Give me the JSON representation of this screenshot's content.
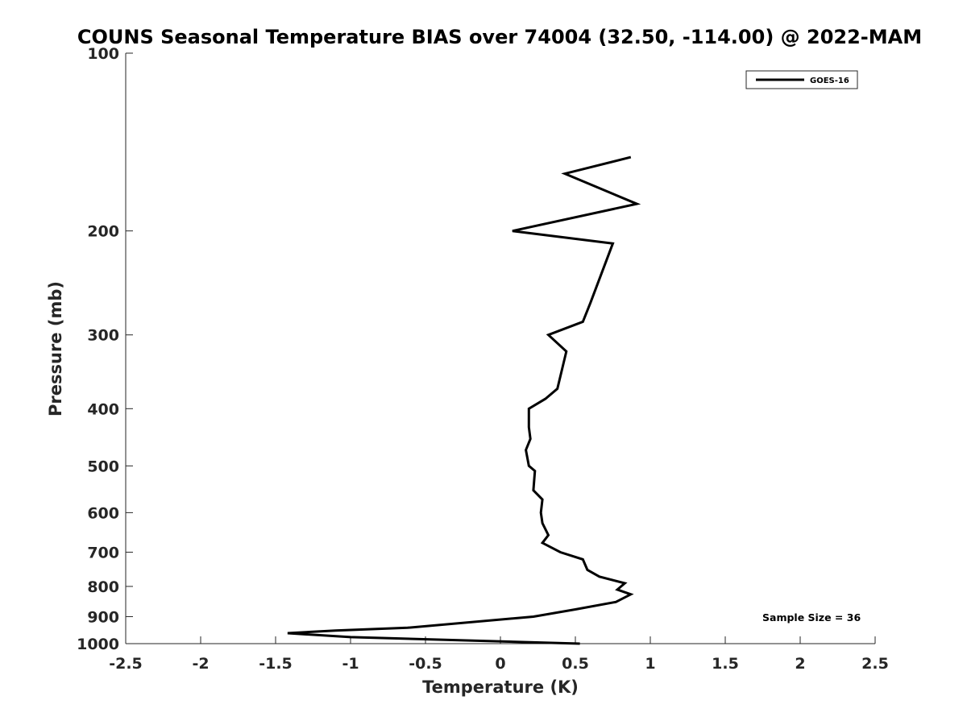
{
  "chart_data": {
    "type": "line",
    "title": "COUNS Seasonal Temperature BIAS over 74004 (32.50, -114.00) @ 2022-MAM",
    "xlabel": "Temperature (K)",
    "ylabel": "Pressure (mb)",
    "xlim": [
      -2.5,
      2.5
    ],
    "ylim": [
      100,
      1000
    ],
    "y_scale": "log",
    "y_reversed": true,
    "x_ticks": [
      "-2.5",
      "-2",
      "-1.5",
      "-1",
      "-0.5",
      "0",
      "0.5",
      "1",
      "1.5",
      "2",
      "2.5"
    ],
    "y_ticks": [
      "100",
      "200",
      "300",
      "400",
      "500",
      "600",
      "700",
      "800",
      "900",
      "1000"
    ],
    "grid": false,
    "legend_position": "top-right",
    "annotation": "Sample Size = 36",
    "series": [
      {
        "name": "GOES-16",
        "color": "#000000",
        "points": [
          [
            0.87,
            150
          ],
          [
            0.43,
            160
          ],
          [
            0.91,
            180
          ],
          [
            0.08,
            200
          ],
          [
            0.75,
            210
          ],
          [
            0.6,
            265
          ],
          [
            0.55,
            285
          ],
          [
            0.32,
            300
          ],
          [
            0.44,
            320
          ],
          [
            0.38,
            370
          ],
          [
            0.3,
            385
          ],
          [
            0.19,
            400
          ],
          [
            0.19,
            430
          ],
          [
            0.2,
            450
          ],
          [
            0.17,
            470
          ],
          [
            0.19,
            500
          ],
          [
            0.23,
            510
          ],
          [
            0.22,
            550
          ],
          [
            0.28,
            570
          ],
          [
            0.27,
            600
          ],
          [
            0.28,
            625
          ],
          [
            0.32,
            655
          ],
          [
            0.28,
            675
          ],
          [
            0.4,
            700
          ],
          [
            0.55,
            720
          ],
          [
            0.58,
            750
          ],
          [
            0.66,
            770
          ],
          [
            0.83,
            790
          ],
          [
            0.78,
            810
          ],
          [
            0.87,
            825
          ],
          [
            0.77,
            850
          ],
          [
            0.5,
            875
          ],
          [
            0.22,
            900
          ],
          [
            -0.62,
            940
          ],
          [
            -1.1,
            950
          ],
          [
            -1.42,
            960
          ],
          [
            -1.0,
            975
          ],
          [
            0.53,
            1000
          ]
        ]
      }
    ]
  }
}
